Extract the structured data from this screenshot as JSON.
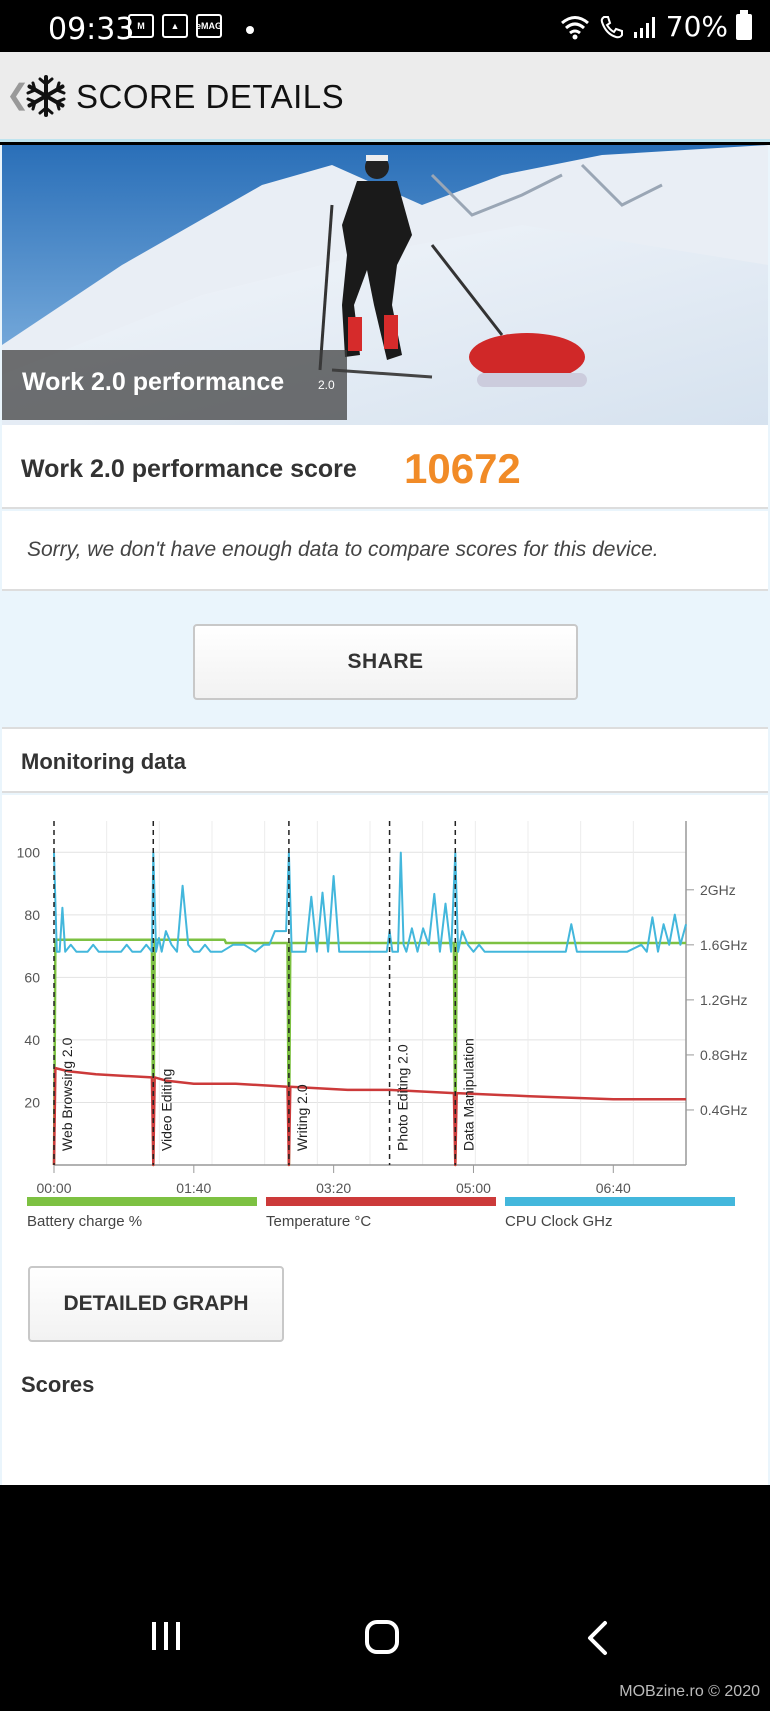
{
  "status_bar": {
    "time": "09:33",
    "notification_icons": [
      "gmail-icon",
      "gallery-icon",
      "emag-icon"
    ],
    "emag_label": "eMAG",
    "battery_percent": "70%"
  },
  "app_bar": {
    "title": "SCORE DETAILS"
  },
  "hero": {
    "title": "Work 2.0 performance",
    "version": "2.0"
  },
  "score": {
    "label": "Work 2.0 performance score",
    "value": "10672",
    "accent_color": "#f18b27"
  },
  "compare_message": "Sorry, we don't have enough data to compare scores for this device.",
  "share_button": "SHARE",
  "monitoring": {
    "heading": "Monitoring data",
    "legend": {
      "battery": "Battery charge %",
      "temperature": "Temperature °C",
      "cpu": "CPU Clock GHz"
    },
    "detailed_graph_button": "DETAILED GRAPH",
    "scores_heading": "Scores"
  },
  "chart_data": {
    "type": "line",
    "x_ticks": [
      "00:00",
      "01:40",
      "03:20",
      "05:00",
      "06:40"
    ],
    "x_tick_seconds": [
      0,
      100,
      200,
      300,
      400
    ],
    "xlim_seconds": [
      0,
      452
    ],
    "y_left_ticks": [
      20,
      40,
      60,
      80,
      100
    ],
    "ylim_left": [
      0,
      110
    ],
    "y_right_ticks": [
      "0.4GHz",
      "0.8GHz",
      "1.2GHz",
      "1.6GHz",
      "2GHz"
    ],
    "y_right_values": [
      0.4,
      0.8,
      1.2,
      1.6,
      2.0
    ],
    "ylim_right": [
      0,
      2.5
    ],
    "markers": [
      {
        "label": "Web Browsing 2.0",
        "t": 0
      },
      {
        "label": "Video Editing",
        "t": 71
      },
      {
        "label": "Writing 2.0",
        "t": 168
      },
      {
        "label": "Photo Editing 2.0",
        "t": 240
      },
      {
        "label": "Data Manipulation",
        "t": 287
      }
    ],
    "series": [
      {
        "name": "Battery charge %",
        "color": "#7dc142",
        "axis": "left",
        "points": [
          [
            0,
            0
          ],
          [
            1,
            72
          ],
          [
            70,
            72
          ],
          [
            71,
            0
          ],
          [
            72,
            72
          ],
          [
            122,
            72
          ],
          [
            123,
            71
          ],
          [
            167,
            71
          ],
          [
            168,
            0
          ],
          [
            169,
            71
          ],
          [
            286,
            71
          ],
          [
            287,
            0
          ],
          [
            288,
            71
          ],
          [
            452,
            71
          ]
        ]
      },
      {
        "name": "Temperature °C",
        "color": "#cc3a3a",
        "axis": "left",
        "points": [
          [
            0,
            0
          ],
          [
            1,
            31
          ],
          [
            10,
            30
          ],
          [
            30,
            29
          ],
          [
            70,
            28
          ],
          [
            71,
            0
          ],
          [
            72,
            28
          ],
          [
            80,
            27
          ],
          [
            100,
            26
          ],
          [
            130,
            26
          ],
          [
            167,
            25
          ],
          [
            168,
            0
          ],
          [
            169,
            25
          ],
          [
            210,
            24
          ],
          [
            240,
            24
          ],
          [
            286,
            23
          ],
          [
            287,
            0
          ],
          [
            288,
            23
          ],
          [
            340,
            22
          ],
          [
            400,
            21
          ],
          [
            452,
            21
          ]
        ]
      },
      {
        "name": "CPU Clock GHz",
        "color": "#43b7dc",
        "axis": "right",
        "points": [
          [
            0,
            2.27
          ],
          [
            2,
            1.55
          ],
          [
            4,
            1.55
          ],
          [
            6,
            1.87
          ],
          [
            8,
            1.55
          ],
          [
            12,
            1.6
          ],
          [
            16,
            1.55
          ],
          [
            20,
            1.55
          ],
          [
            24,
            1.55
          ],
          [
            28,
            1.6
          ],
          [
            32,
            1.55
          ],
          [
            40,
            1.55
          ],
          [
            48,
            1.55
          ],
          [
            52,
            1.6
          ],
          [
            56,
            1.55
          ],
          [
            62,
            1.55
          ],
          [
            66,
            1.6
          ],
          [
            70,
            1.55
          ],
          [
            71,
            2.27
          ],
          [
            73,
            1.55
          ],
          [
            75,
            1.65
          ],
          [
            77,
            1.55
          ],
          [
            80,
            1.7
          ],
          [
            84,
            1.6
          ],
          [
            88,
            1.55
          ],
          [
            92,
            2.03
          ],
          [
            96,
            1.6
          ],
          [
            100,
            1.55
          ],
          [
            104,
            1.55
          ],
          [
            108,
            1.6
          ],
          [
            112,
            1.55
          ],
          [
            120,
            1.55
          ],
          [
            128,
            1.6
          ],
          [
            136,
            1.6
          ],
          [
            144,
            1.55
          ],
          [
            150,
            1.6
          ],
          [
            154,
            1.6
          ],
          [
            158,
            1.7
          ],
          [
            166,
            1.7
          ],
          [
            168,
            2.27
          ],
          [
            170,
            1.55
          ],
          [
            176,
            1.55
          ],
          [
            180,
            1.55
          ],
          [
            184,
            1.95
          ],
          [
            188,
            1.55
          ],
          [
            192,
            1.98
          ],
          [
            196,
            1.55
          ],
          [
            200,
            2.1
          ],
          [
            204,
            1.55
          ],
          [
            208,
            1.55
          ],
          [
            216,
            1.55
          ],
          [
            224,
            1.55
          ],
          [
            232,
            1.55
          ],
          [
            238,
            1.55
          ],
          [
            240,
            1.7
          ],
          [
            242,
            1.55
          ],
          [
            246,
            1.55
          ],
          [
            248,
            2.27
          ],
          [
            250,
            1.6
          ],
          [
            252,
            1.55
          ],
          [
            256,
            1.72
          ],
          [
            260,
            1.55
          ],
          [
            264,
            1.72
          ],
          [
            268,
            1.6
          ],
          [
            272,
            1.97
          ],
          [
            276,
            1.55
          ],
          [
            280,
            1.9
          ],
          [
            284,
            1.55
          ],
          [
            287,
            2.27
          ],
          [
            289,
            1.55
          ],
          [
            292,
            1.7
          ],
          [
            296,
            1.6
          ],
          [
            300,
            1.55
          ],
          [
            304,
            1.6
          ],
          [
            308,
            1.55
          ],
          [
            312,
            1.55
          ],
          [
            320,
            1.55
          ],
          [
            328,
            1.55
          ],
          [
            336,
            1.55
          ],
          [
            344,
            1.55
          ],
          [
            352,
            1.55
          ],
          [
            360,
            1.55
          ],
          [
            366,
            1.55
          ],
          [
            370,
            1.75
          ],
          [
            374,
            1.55
          ],
          [
            380,
            1.55
          ],
          [
            390,
            1.55
          ],
          [
            400,
            1.55
          ],
          [
            410,
            1.55
          ],
          [
            420,
            1.6
          ],
          [
            424,
            1.55
          ],
          [
            428,
            1.8
          ],
          [
            432,
            1.55
          ],
          [
            436,
            1.75
          ],
          [
            440,
            1.6
          ],
          [
            444,
            1.82
          ],
          [
            448,
            1.6
          ],
          [
            452,
            1.75
          ]
        ]
      }
    ]
  },
  "navbar": {
    "credit": "MOBzine.ro © 2020"
  }
}
